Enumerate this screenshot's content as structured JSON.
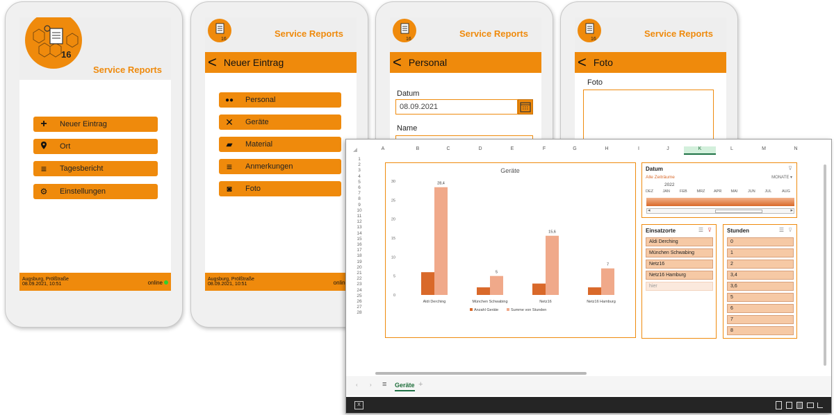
{
  "app": {
    "title": "Service Reports",
    "logo_number": "16"
  },
  "screen1": {
    "menu": [
      {
        "icon": "plus-icon",
        "glyph": "+",
        "label": "Neuer Eintrag"
      },
      {
        "icon": "location-pin-icon",
        "glyph": "⬤",
        "label": "Ort"
      },
      {
        "icon": "list-icon",
        "glyph": "≡",
        "label": "Tagesbericht"
      },
      {
        "icon": "gear-icon",
        "glyph": "⚙",
        "label": "Einstellungen"
      }
    ],
    "footer": {
      "location": "Augsburg, Prölßtraße",
      "datetime": "08.09.2021, 10:51",
      "status": "online"
    }
  },
  "screen2": {
    "nav_title": "Neuer Eintrag",
    "menu": [
      {
        "icon": "people-icon",
        "label": "Personal"
      },
      {
        "icon": "tools-icon",
        "label": "Geräte"
      },
      {
        "icon": "material-icon",
        "label": "Material"
      },
      {
        "icon": "list-icon",
        "label": "Anmerkungen"
      },
      {
        "icon": "camera-icon",
        "label": "Foto"
      }
    ],
    "footer": {
      "location": "Augsburg, Prölßtraße",
      "datetime": "08.09.2021, 10:51",
      "status": "online"
    }
  },
  "screen3": {
    "nav_title": "Personal",
    "date_label": "Datum",
    "date_value": "08.09.2021",
    "name_label": "Name"
  },
  "screen4": {
    "nav_title": "Foto",
    "photo_label": "Foto"
  },
  "excel": {
    "columns": [
      "A",
      "B",
      "C",
      "D",
      "E",
      "F",
      "G",
      "H",
      "I",
      "J",
      "K",
      "L",
      "M",
      "N"
    ],
    "selected_column": "K",
    "rows": [
      "1",
      "2",
      "3",
      "4",
      "5",
      "6",
      "7",
      "8",
      "9",
      "10",
      "11",
      "12",
      "13",
      "14",
      "15",
      "16",
      "17",
      "18",
      "19",
      "20",
      "21",
      "22",
      "23",
      "24",
      "25",
      "26",
      "27",
      "28"
    ],
    "sheet_tab": "Geräte",
    "slicer_datum": {
      "title": "Datum",
      "all_periods": "Alle Zeiträume",
      "unit": "MONATE ▾",
      "year": "2022",
      "months": [
        "DEZ",
        "JAN",
        "FEB",
        "MRZ",
        "APR",
        "MAI",
        "JUN",
        "JUL",
        "AUG"
      ]
    },
    "slicer_einsatzorte": {
      "title": "Einsatzorte",
      "items": [
        "Aldi Derching",
        "München Schwabing",
        "Netz16",
        "Netz16 Hamburg",
        "hier"
      ]
    },
    "slicer_stunden": {
      "title": "Stunden",
      "items": [
        "0",
        "1",
        "2",
        "3,4",
        "3,6",
        "5",
        "6",
        "7",
        "8"
      ]
    }
  },
  "colors": {
    "accent": "#ef8a0c",
    "series_dark": "#d9692a",
    "series_light": "#f0a98a"
  },
  "chart_data": {
    "type": "bar",
    "title": "Geräte",
    "categories": [
      "Aldi Derching",
      "München Schwabing",
      "Netz16",
      "Netz16 Hamburg"
    ],
    "series": [
      {
        "name": "Anzahl Geräte",
        "values": [
          6,
          2,
          3,
          2
        ]
      },
      {
        "name": "Summe von Stunden",
        "values": [
          28.4,
          5,
          15.6,
          7
        ],
        "labels": [
          "28,4",
          "5",
          "15,6",
          "7"
        ]
      }
    ],
    "ylim": [
      0,
      30
    ],
    "yticks": [
      "0",
      "5",
      "10",
      "15",
      "20",
      "25",
      "30"
    ],
    "legend_position": "bottom"
  }
}
